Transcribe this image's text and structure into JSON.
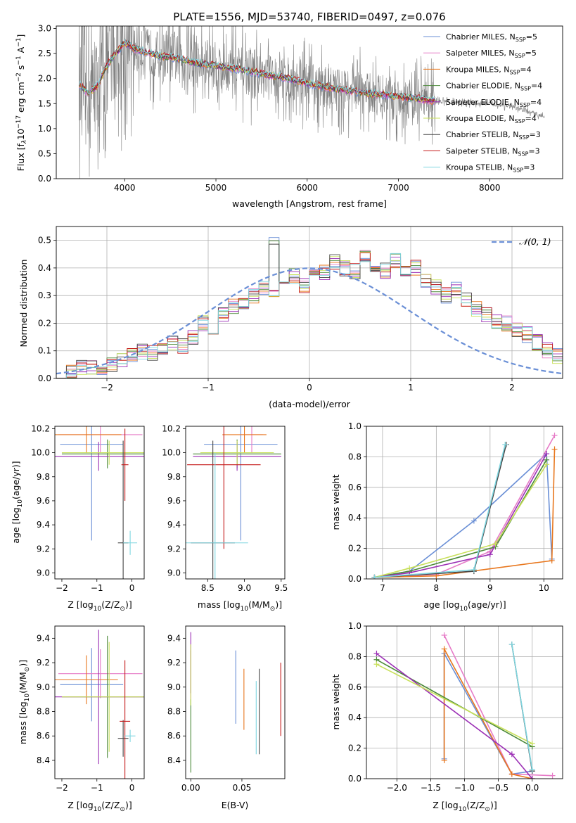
{
  "figure": {
    "title": "PLATE=1556, MJD=53740, FIBERID=0497, z=0.076"
  },
  "series_legend": [
    {
      "label": "Chabrier MILES, N",
      "sub": "SSP",
      "suffix": "=5",
      "color": "#6a8fd6"
    },
    {
      "label": "Salpeter MILES, N",
      "sub": "SSP",
      "suffix": "=5",
      "color": "#e67bc7"
    },
    {
      "label": "Kroupa MILES, N",
      "sub": "SSP",
      "suffix": "=4",
      "color": "#e8771e"
    },
    {
      "label": "Chabrier ELODIE, N",
      "sub": "SSP",
      "suffix": "=4",
      "color": "#4c8a3a"
    },
    {
      "label": "Salpeter ELODIE, N",
      "sub": "SSP",
      "suffix": "=4",
      "color": "#9b2fb5"
    },
    {
      "label": "Kroupa ELODIE, N",
      "sub": "SSP",
      "suffix": "=4",
      "color": "#c8e05a"
    },
    {
      "label": "Chabrier STELIB, N",
      "sub": "SSP",
      "suffix": "=3",
      "color": "#444444"
    },
    {
      "label": "Salpeter STELIB, N",
      "sub": "SSP",
      "suffix": "=3",
      "color": "#c41a1a"
    },
    {
      "label": "Kroupa STELIB, N",
      "sub": "SSP",
      "suffix": "=3",
      "color": "#7fd6e0"
    }
  ],
  "chart_data": [
    {
      "id": "spectrum",
      "type": "line",
      "xlabel": "wavelength [Angstrom, rest frame]",
      "ylabel": "Flux [f",
      "ylabel_parts": [
        "Flux [f",
        "λ",
        "10",
        "−17",
        " erg cm",
        "−2",
        " s",
        "−1",
        " A",
        "−1",
        "]"
      ],
      "xlim": [
        3250,
        8800
      ],
      "ylim": [
        0,
        3.05
      ],
      "xticks": [
        4000,
        5000,
        6000,
        7000,
        8000
      ],
      "yticks": [
        0.0,
        0.5,
        1.0,
        1.5,
        2.0,
        2.5,
        3.0
      ],
      "ytick_labels": [
        "0.0",
        "0.5",
        "1.0",
        "1.5",
        "2.0",
        "2.5",
        "3.0"
      ],
      "data_color": "#808080",
      "data_continuum": {
        "x": [
          3500,
          3600,
          3700,
          3800,
          3900,
          4000,
          4100,
          4200,
          4400,
          4600,
          4800,
          5000,
          5200,
          5500,
          5800,
          6000,
          6300,
          6600,
          6900,
          7200,
          7400,
          7700,
          8000,
          8200,
          8400,
          8600
        ],
        "y": [
          1.9,
          1.7,
          1.85,
          2.2,
          2.45,
          2.7,
          2.6,
          2.55,
          2.45,
          2.4,
          2.3,
          2.25,
          2.2,
          2.1,
          2.0,
          1.9,
          1.8,
          1.72,
          1.65,
          1.6,
          1.55,
          1.52,
          1.5,
          1.45,
          1.35,
          1.25
        ]
      },
      "model": {
        "x": [
          3500,
          3600,
          3700,
          3800,
          3900,
          4000,
          4100,
          4200,
          4400,
          4600,
          4800,
          5000,
          5200,
          5500,
          5800,
          6000,
          6300,
          6600,
          6900,
          7200,
          7400
        ],
        "y": [
          1.9,
          1.7,
          1.85,
          2.25,
          2.5,
          2.72,
          2.6,
          2.55,
          2.45,
          2.4,
          2.3,
          2.25,
          2.2,
          2.1,
          2.0,
          1.9,
          1.8,
          1.72,
          1.66,
          1.6,
          1.55
        ]
      }
    },
    {
      "id": "residuals",
      "type": "line",
      "xlabel": "(data-model)/error",
      "ylabel": "Normed distribution",
      "xlim": [
        -2.5,
        2.5
      ],
      "ylim": [
        0,
        0.55
      ],
      "xticks": [
        -2,
        -1,
        0,
        1,
        2
      ],
      "xtick_labels": [
        "−2",
        "−1",
        "0",
        "1",
        "2"
      ],
      "yticks": [
        0.0,
        0.1,
        0.2,
        0.3,
        0.4,
        0.5
      ],
      "ytick_labels": [
        "0.0",
        "0.1",
        "0.2",
        "0.3",
        "0.4",
        "0.5"
      ],
      "grid": true,
      "legend": {
        "label": "𝒩(0, 1)",
        "color": "#6a8fd6",
        "placement": "top-right"
      },
      "hist_bins": {
        "start": -2.5,
        "width": 0.1
      },
      "hist_values": [
        0.03,
        0.025,
        0.04,
        0.035,
        0.03,
        0.05,
        0.06,
        0.08,
        0.1,
        0.09,
        0.11,
        0.13,
        0.12,
        0.15,
        0.2,
        0.18,
        0.23,
        0.26,
        0.28,
        0.3,
        0.33,
        0.3,
        0.35,
        0.37,
        0.34,
        0.4,
        0.38,
        0.42,
        0.4,
        0.39,
        0.44,
        0.41,
        0.39,
        0.43,
        0.38,
        0.4,
        0.36,
        0.33,
        0.3,
        0.32,
        0.28,
        0.25,
        0.23,
        0.21,
        0.2,
        0.18,
        0.16,
        0.13,
        0.1,
        0.08,
        0.1,
        0.09,
        0.07,
        0.06,
        0.05,
        0.04,
        0.04,
        0.03,
        0.03,
        0.04
      ],
      "hist_spike": {
        "bin": 21,
        "value": 0.51
      }
    },
    {
      "id": "age-vs-z",
      "type": "scatter",
      "xlabel": "Z [log",
      "xlabel_parts": [
        "Z [log",
        "10",
        "(Z/Z",
        "⊙",
        ")]"
      ],
      "ylabel_parts": [
        "age  [log",
        "10",
        "(age/yr)]"
      ],
      "xlim": [
        -2.2,
        0.35
      ],
      "ylim": [
        8.95,
        10.22
      ],
      "xticks": [
        -2,
        -1,
        0
      ],
      "xtick_labels": [
        "−2",
        "−1",
        "0"
      ],
      "yticks": [
        9.0,
        9.2,
        9.4,
        9.6,
        9.8,
        10.0,
        10.2
      ],
      "ytick_labels": [
        "9.0",
        "9.2",
        "9.4",
        "9.6",
        "9.8",
        "10.0",
        "10.2"
      ],
      "points": [
        {
          "s": 0,
          "x": -1.15,
          "y": 10.07,
          "xerr": 0.9,
          "yerr": 0.8
        },
        {
          "s": 1,
          "x": -0.9,
          "y": 10.15,
          "xerr": 1.2,
          "yerr": 0.15
        },
        {
          "s": 2,
          "x": -1.3,
          "y": 10.15,
          "xerr": 1.0,
          "yerr": 0.15
        },
        {
          "s": 3,
          "x": -0.7,
          "y": 9.99,
          "xerr": 1.3,
          "yerr": 0.12
        },
        {
          "s": 4,
          "x": -0.95,
          "y": 9.97,
          "xerr": 1.3,
          "yerr": 0.12
        },
        {
          "s": 5,
          "x": -0.65,
          "y": 10.0,
          "xerr": 1.35,
          "yerr": 0.1
        },
        {
          "s": 6,
          "x": -0.25,
          "y": 9.25,
          "xerr": 0.15,
          "yerr": 0.85
        },
        {
          "s": 7,
          "x": -0.2,
          "y": 9.9,
          "xerr": 0.1,
          "yerr": 0.3
        },
        {
          "s": 8,
          "x": -0.05,
          "y": 9.25,
          "xerr": 0.2,
          "yerr": 0.1
        }
      ]
    },
    {
      "id": "age-vs-mass",
      "type": "scatter",
      "xlabel_parts": [
        "mass [log",
        "10",
        "(M/M",
        "⊙",
        ")]"
      ],
      "xlim": [
        8.2,
        9.55
      ],
      "ylim": [
        8.95,
        10.22
      ],
      "xticks": [
        8.5,
        9.0,
        9.5
      ],
      "xtick_labels": [
        "8.5",
        "9.0",
        "9.5"
      ],
      "yticks": [
        9.0,
        9.2,
        9.4,
        9.6,
        9.8,
        10.0,
        10.2
      ],
      "ytick_labels": [
        "9.0",
        "9.2",
        "9.4",
        "9.6",
        "9.8",
        "10.0",
        "10.2"
      ],
      "points": [
        {
          "s": 0,
          "x": 8.95,
          "y": 10.07,
          "xerr": 0.5,
          "yerr": 0.8
        },
        {
          "s": 1,
          "x": 9.1,
          "y": 10.15,
          "xerr": 0.15,
          "yerr": 0.15
        },
        {
          "s": 2,
          "x": 9.0,
          "y": 10.15,
          "xerr": 0.3,
          "yerr": 0.15
        },
        {
          "s": 3,
          "x": 8.9,
          "y": 9.99,
          "xerr": 0.6,
          "yerr": 0.12
        },
        {
          "s": 4,
          "x": 8.9,
          "y": 9.97,
          "xerr": 0.6,
          "yerr": 0.12
        },
        {
          "s": 5,
          "x": 8.9,
          "y": 10.0,
          "xerr": 0.5,
          "yerr": 0.1
        },
        {
          "s": 6,
          "x": 8.57,
          "y": 9.25,
          "xerr": 0.3,
          "yerr": 0.85
        },
        {
          "s": 7,
          "x": 8.72,
          "y": 9.9,
          "xerr": 0.5,
          "yerr": 0.7
        },
        {
          "s": 8,
          "x": 8.6,
          "y": 9.25,
          "xerr": 0.45,
          "yerr": 0.75
        }
      ]
    },
    {
      "id": "weight-vs-age",
      "type": "line",
      "xlabel_parts": [
        "age  [log",
        "10",
        "(age/yr)]"
      ],
      "ylabel": "mass weight",
      "xlim": [
        6.7,
        10.35
      ],
      "ylim": [
        0,
        1.0
      ],
      "xticks": [
        7,
        8,
        9,
        10
      ],
      "xtick_labels": [
        "7",
        "8",
        "9",
        "10"
      ],
      "yticks": [
        0.0,
        0.2,
        0.4,
        0.6,
        0.8,
        1.0
      ],
      "ytick_labels": [
        "0.0",
        "0.2",
        "0.4",
        "0.6",
        "0.8",
        "1.0"
      ],
      "grid": true,
      "series": [
        {
          "s": 0,
          "x": [
            6.85,
            7.5,
            8.7,
            10.05,
            10.15
          ],
          "y": [
            0.01,
            0.05,
            0.38,
            0.82,
            0.13
          ]
        },
        {
          "s": 1,
          "x": [
            6.85,
            8.0,
            9.0,
            10.2
          ],
          "y": [
            0.01,
            0.03,
            0.18,
            0.94
          ]
        },
        {
          "s": 2,
          "x": [
            6.85,
            8.0,
            10.15,
            10.2
          ],
          "y": [
            0.01,
            0.02,
            0.12,
            0.85
          ]
        },
        {
          "s": 3,
          "x": [
            6.85,
            7.5,
            9.1,
            10.05
          ],
          "y": [
            0.01,
            0.05,
            0.21,
            0.78
          ]
        },
        {
          "s": 4,
          "x": [
            6.85,
            7.5,
            9.0,
            10.05
          ],
          "y": [
            0.01,
            0.04,
            0.16,
            0.82
          ]
        },
        {
          "s": 5,
          "x": [
            6.85,
            7.5,
            9.1,
            10.05
          ],
          "y": [
            0.01,
            0.07,
            0.23,
            0.75
          ]
        },
        {
          "s": 6,
          "x": [
            6.85,
            8.7,
            9.3
          ],
          "y": [
            0.01,
            0.05,
            0.88
          ]
        },
        {
          "s": 8,
          "x": [
            6.85,
            8.7,
            9.28
          ],
          "y": [
            0.01,
            0.06,
            0.88
          ]
        }
      ]
    },
    {
      "id": "mass-vs-z",
      "type": "scatter",
      "xlabel_parts": [
        "Z [log",
        "10",
        "(Z/Z",
        "⊙",
        ")]"
      ],
      "ylabel_parts": [
        "mass [log",
        "10",
        "(M/M",
        "⊙",
        ")]"
      ],
      "xlim": [
        -2.2,
        0.35
      ],
      "ylim": [
        8.25,
        9.5
      ],
      "xticks": [
        -2,
        -1,
        0
      ],
      "xtick_labels": [
        "−2",
        "−1",
        "0"
      ],
      "yticks": [
        8.4,
        8.6,
        8.8,
        9.0,
        9.2,
        9.4
      ],
      "ytick_labels": [
        "8.4",
        "8.6",
        "8.8",
        "9.0",
        "9.2",
        "9.4"
      ],
      "points": [
        {
          "s": 0,
          "x": -1.15,
          "y": 9.02,
          "xerr": 0.9,
          "yerr": 0.3
        },
        {
          "s": 1,
          "x": -0.9,
          "y": 9.11,
          "xerr": 1.2,
          "yerr": 0.2
        },
        {
          "s": 2,
          "x": -1.3,
          "y": 9.06,
          "xerr": 0.9,
          "yerr": 0.2
        },
        {
          "s": 3,
          "x": -0.7,
          "y": 8.92,
          "xerr": 1.3,
          "yerr": 0.5
        },
        {
          "s": 4,
          "x": -0.95,
          "y": 8.92,
          "xerr": 1.3,
          "yerr": 0.55
        },
        {
          "s": 5,
          "x": -0.65,
          "y": 8.92,
          "xerr": 1.35,
          "yerr": 0.45
        },
        {
          "s": 6,
          "x": -0.25,
          "y": 8.58,
          "xerr": 0.15,
          "yerr": 0.15
        },
        {
          "s": 7,
          "x": -0.2,
          "y": 8.72,
          "xerr": 0.15,
          "yerr": 0.5
        },
        {
          "s": 8,
          "x": -0.05,
          "y": 8.6,
          "xerr": 0.15,
          "yerr": 0.05
        }
      ]
    },
    {
      "id": "mass-vs-ebv",
      "type": "scatter",
      "xlabel": "E(B-V)",
      "xlim": [
        -0.005,
        0.092
      ],
      "ylim": [
        8.25,
        9.5
      ],
      "xticks": [
        0.0,
        0.05
      ],
      "xtick_labels": [
        "0.00",
        "0.05"
      ],
      "yticks": [
        8.4,
        8.6,
        8.8,
        9.0,
        9.2,
        9.4
      ],
      "ytick_labels": [
        "8.4",
        "8.6",
        "8.8",
        "9.0",
        "9.2",
        "9.4"
      ],
      "points": [
        {
          "s": 0,
          "x": 0.044,
          "y": 9.0,
          "yerr": 0.3
        },
        {
          "s": 1,
          "x": 0.0,
          "y": 9.1,
          "yerr": 0.2
        },
        {
          "s": 2,
          "x": 0.052,
          "y": 8.9,
          "yerr": 0.25
        },
        {
          "s": 3,
          "x": 0.0,
          "y": 8.6,
          "yerr": 0.3
        },
        {
          "s": 4,
          "x": 0.0,
          "y": 9.2,
          "yerr": 0.25
        },
        {
          "s": 5,
          "x": 0.0,
          "y": 9.1,
          "yerr": 0.25
        },
        {
          "s": 6,
          "x": 0.067,
          "y": 8.8,
          "yerr": 0.35
        },
        {
          "s": 7,
          "x": 0.088,
          "y": 8.9,
          "yerr": 0.3
        },
        {
          "s": 8,
          "x": 0.064,
          "y": 8.75,
          "yerr": 0.3
        }
      ]
    },
    {
      "id": "weight-vs-z",
      "type": "line",
      "xlabel_parts": [
        "Z [log",
        "10",
        "(Z/Z",
        "⊙",
        ")]"
      ],
      "ylabel": "mass weight",
      "xlim": [
        -2.45,
        0.45
      ],
      "ylim": [
        0,
        1.0
      ],
      "xticks": [
        -2.0,
        -1.5,
        -1.0,
        -0.5,
        0.0
      ],
      "xtick_labels": [
        "−2.0",
        "−1.5",
        "−1.0",
        "−0.5",
        "0.0"
      ],
      "yticks": [
        0.0,
        0.2,
        0.4,
        0.6,
        0.8,
        1.0
      ],
      "ytick_labels": [
        "0.0",
        "0.2",
        "0.4",
        "0.6",
        "0.8",
        "1.0"
      ],
      "grid": true,
      "series": [
        {
          "s": 0,
          "x": [
            -1.3,
            -1.3,
            -0.3,
            0.0
          ],
          "y": [
            0.13,
            0.82,
            0.03,
            0.05
          ]
        },
        {
          "s": 1,
          "x": [
            -1.3,
            -0.3,
            0.3
          ],
          "y": [
            0.94,
            0.03,
            0.02
          ]
        },
        {
          "s": 2,
          "x": [
            -1.3,
            -1.3,
            -0.3,
            0.0
          ],
          "y": [
            0.12,
            0.85,
            0.03,
            0.0
          ]
        },
        {
          "s": 3,
          "x": [
            -2.3,
            0.0
          ],
          "y": [
            0.78,
            0.21
          ]
        },
        {
          "s": 4,
          "x": [
            -2.3,
            -0.3,
            0.0
          ],
          "y": [
            0.82,
            0.16,
            0.0
          ]
        },
        {
          "s": 5,
          "x": [
            -2.3,
            0.0
          ],
          "y": [
            0.75,
            0.23
          ]
        },
        {
          "s": 6,
          "x": [
            -0.3,
            0.0
          ],
          "y": [
            0.88,
            0.05
          ]
        },
        {
          "s": 8,
          "x": [
            -0.3,
            0.0
          ],
          "y": [
            0.88,
            0.06
          ]
        }
      ]
    }
  ]
}
